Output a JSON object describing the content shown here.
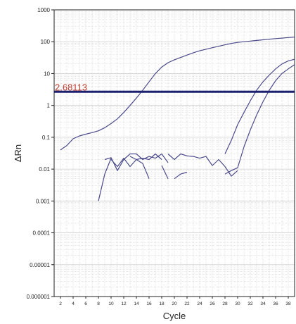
{
  "chart_data": {
    "type": "line",
    "title": "",
    "xlabel": "Cycle",
    "ylabel": "ΔRn",
    "yscale": "log",
    "xlim": [
      1,
      39
    ],
    "ylim": [
      1e-06,
      1000
    ],
    "x_ticks": [
      2,
      4,
      6,
      8,
      10,
      12,
      14,
      16,
      18,
      20,
      22,
      24,
      26,
      28,
      30,
      32,
      34,
      36,
      38
    ],
    "y_ticks": [
      {
        "value": 1000,
        "label": "1000"
      },
      {
        "value": 100,
        "label": "100"
      },
      {
        "value": 10,
        "label": "10"
      },
      {
        "value": 1,
        "label": "1"
      },
      {
        "value": 0.1,
        "label": "0.1"
      },
      {
        "value": 0.01,
        "label": "0.01"
      },
      {
        "value": 0.001,
        "label": "0.001"
      },
      {
        "value": 0.0001,
        "label": "0.0001"
      },
      {
        "value": 1e-05,
        "label": "0.00001"
      },
      {
        "value": 1e-06,
        "label": "0.000001"
      }
    ],
    "grid": true,
    "colors": {
      "series": "#4a4a8c",
      "threshold": "#1a1f6e",
      "threshold_label": "#c0392b",
      "grid": "#cfcfcf",
      "axis": "#222222"
    },
    "threshold": {
      "value": 2.68113,
      "label": "2.68113"
    },
    "series": [
      {
        "points": [
          [
            2,
            0.04
          ],
          [
            3,
            0.055
          ],
          [
            4,
            0.09
          ],
          [
            5,
            0.11
          ],
          [
            6,
            0.125
          ],
          [
            7,
            0.14
          ],
          [
            8,
            0.16
          ],
          [
            9,
            0.2
          ],
          [
            10,
            0.27
          ],
          [
            11,
            0.38
          ],
          [
            12,
            0.6
          ],
          [
            13,
            1.0
          ],
          [
            14,
            1.7
          ],
          [
            15,
            3.0
          ],
          [
            16,
            5.5
          ],
          [
            17,
            10
          ],
          [
            18,
            16
          ],
          [
            19,
            22
          ],
          [
            20,
            27
          ],
          [
            21,
            32
          ],
          [
            22,
            38
          ],
          [
            23,
            45
          ],
          [
            24,
            52
          ],
          [
            25,
            58
          ],
          [
            26,
            65
          ],
          [
            27,
            72
          ],
          [
            28,
            80
          ],
          [
            29,
            88
          ],
          [
            30,
            95
          ],
          [
            31,
            100
          ],
          [
            32,
            105
          ],
          [
            33,
            110
          ],
          [
            34,
            115
          ],
          [
            35,
            120
          ],
          [
            36,
            125
          ],
          [
            37,
            130
          ],
          [
            38,
            135
          ],
          [
            39,
            140
          ]
        ]
      },
      {
        "points": [
          [
            28,
            0.03
          ],
          [
            29,
            0.08
          ],
          [
            30,
            0.25
          ],
          [
            31,
            0.6
          ],
          [
            32,
            1.4
          ],
          [
            33,
            3.0
          ],
          [
            34,
            5.5
          ],
          [
            35,
            9
          ],
          [
            36,
            14
          ],
          [
            37,
            20
          ],
          [
            38,
            25
          ],
          [
            39,
            28
          ]
        ]
      },
      {
        "points": [
          [
            28,
            0.007
          ],
          [
            29,
            0.009
          ],
          [
            30,
            0.011
          ],
          [
            31,
            0.05
          ],
          [
            32,
            0.17
          ],
          [
            33,
            0.5
          ],
          [
            34,
            1.3
          ],
          [
            35,
            3.0
          ],
          [
            36,
            6.0
          ],
          [
            37,
            10
          ],
          [
            38,
            14
          ],
          [
            39,
            19
          ]
        ]
      },
      {
        "points": [
          [
            8,
            0.001
          ],
          [
            9,
            0.007
          ],
          [
            10,
            0.022
          ]
        ]
      },
      {
        "points": [
          [
            9,
            0.02
          ],
          [
            10,
            0.023
          ],
          [
            11,
            0.009
          ],
          [
            12,
            0.02
          ],
          [
            13,
            0.03
          ],
          [
            14,
            0.03
          ],
          [
            15,
            0.02
          ],
          [
            16,
            0.025
          ]
        ]
      },
      {
        "points": [
          [
            10,
            0.02
          ],
          [
            11,
            0.012
          ],
          [
            12,
            0.022
          ],
          [
            13,
            0.012
          ],
          [
            14,
            0.02
          ],
          [
            15,
            0.015
          ],
          [
            16,
            0.005
          ]
        ]
      },
      {
        "points": [
          [
            13,
            0.025
          ],
          [
            14,
            0.02
          ],
          [
            15,
            0.022
          ],
          [
            16,
            0.02
          ],
          [
            17,
            0.03
          ],
          [
            18,
            0.02
          ]
        ]
      },
      {
        "points": [
          [
            16,
            0.025
          ],
          [
            17,
            0.022
          ],
          [
            18,
            0.03
          ],
          [
            19,
            0.016
          ]
        ]
      },
      {
        "points": [
          [
            18,
            0.013
          ],
          [
            19,
            0.005
          ]
        ]
      },
      {
        "points": [
          [
            19,
            0.03
          ],
          [
            20,
            0.02
          ],
          [
            21,
            0.03
          ],
          [
            22,
            0.026
          ],
          [
            23,
            0.025
          ],
          [
            24,
            0.022
          ],
          [
            25,
            0.025
          ],
          [
            26,
            0.013
          ],
          [
            27,
            0.02
          ],
          [
            28,
            0.012
          ],
          [
            29,
            0.006
          ],
          [
            30,
            0.009
          ]
        ]
      },
      {
        "points": [
          [
            20,
            0.005
          ],
          [
            21,
            0.007
          ],
          [
            22,
            0.008
          ]
        ]
      }
    ]
  }
}
